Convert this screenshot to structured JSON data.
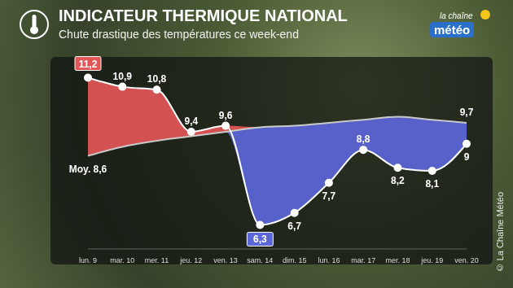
{
  "chart_data": {
    "type": "line",
    "title": "INDICATEUR THERMIQUE NATIONAL",
    "subtitle": "Chute drastique des températures ce week-end",
    "annotations": [
      "la chaîne",
      "météo",
      "© La Chaîne Météo"
    ],
    "categories": [
      "lun. 9",
      "mar. 10",
      "mer. 11",
      "jeu. 12",
      "ven. 13",
      "sam. 14",
      "dim. 15",
      "lun. 16",
      "mar. 17",
      "mer. 18",
      "jeu. 19",
      "ven. 20"
    ],
    "series": [
      {
        "color": "#ffffff",
        "marker": "circle",
        "values": [
          11.2,
          10.9,
          10.8,
          9.4,
          9.6,
          6.3,
          6.7,
          7.7,
          8.8,
          8.2,
          8.1,
          9
        ],
        "value_labels": [
          "11,2",
          "10,9",
          "10,8",
          "9,4",
          "9,6",
          "6,3",
          "6,7",
          "7,7",
          "8,8",
          "8,2",
          "8,1",
          "9"
        ]
      },
      {
        "color": "#c9c9c9",
        "values": [
          8.6,
          8.9,
          9.1,
          9.25,
          9.4,
          9.55,
          9.6,
          9.7,
          9.8,
          9.9,
          9.8,
          9.7
        ],
        "value_labels": [
          "Moy. 8,6",
          null,
          null,
          null,
          null,
          null,
          null,
          null,
          null,
          null,
          null,
          "9,7"
        ]
      }
    ],
    "ylim": [
      5.5,
      12
    ],
    "grid": false,
    "data_labels": true,
    "tick_labels": "x"
  }
}
